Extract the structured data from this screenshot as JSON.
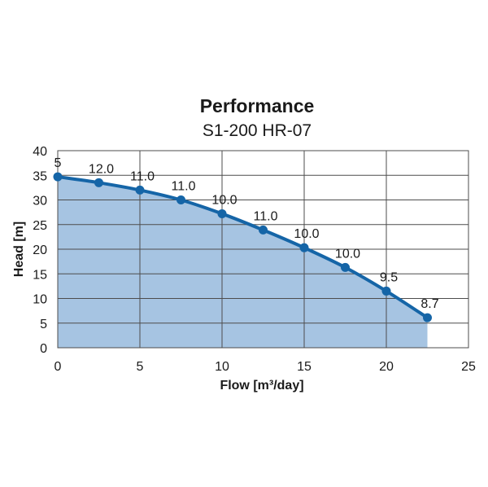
{
  "chart_data": {
    "type": "area",
    "title": "Performance",
    "subtitle": "S1-200 HR-07",
    "xlabel": "Flow [m³/day]",
    "ylabel": "Head [m]",
    "xlim": [
      0,
      25
    ],
    "ylim": [
      0,
      40
    ],
    "x_ticks": [
      "0",
      "5",
      "10",
      "15",
      "20",
      "25"
    ],
    "y_ticks": [
      "0",
      "5",
      "10",
      "15",
      "20",
      "25",
      "30",
      "35",
      "40"
    ],
    "grid": true,
    "series": [
      {
        "x": [
          0,
          2.5,
          5,
          7.5,
          10,
          12.5,
          15,
          17.5,
          20,
          22.5
        ],
        "y": [
          34.7,
          33.5,
          32.0,
          30.0,
          27.2,
          23.9,
          20.3,
          16.3,
          11.5,
          6.1
        ],
        "labels": [
          "5",
          "12.0",
          "11.0",
          "11.0",
          "10.0",
          "11.0",
          "10.0",
          "10.0",
          "9.5",
          "8.7"
        ]
      }
    ],
    "colors": {
      "line": "#1565a7",
      "fill": "#a6c4e2",
      "marker": "#1565a7"
    }
  }
}
